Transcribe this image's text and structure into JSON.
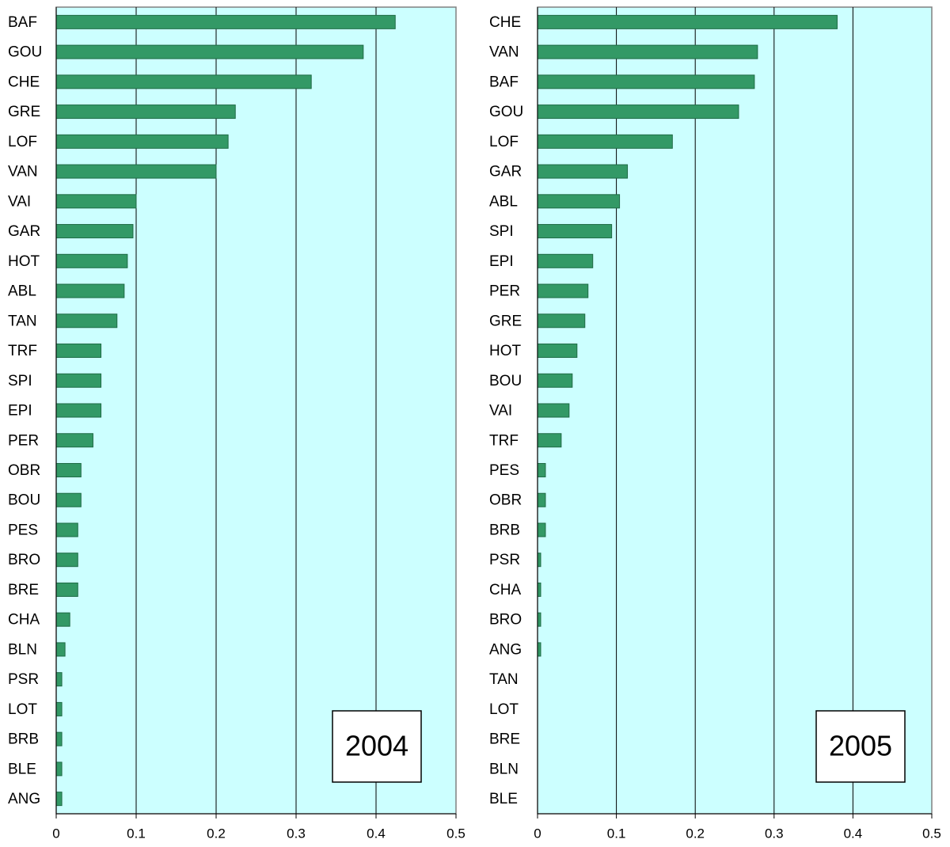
{
  "chart_data": [
    {
      "type": "bar",
      "orientation": "horizontal",
      "annotation": "2004",
      "categories": [
        "BAF",
        "GOU",
        "CHE",
        "GRE",
        "LOF",
        "VAN",
        "VAI",
        "GAR",
        "HOT",
        "ABL",
        "TAN",
        "TRF",
        "SPI",
        "EPI",
        "PER",
        "OBR",
        "BOU",
        "PES",
        "BRO",
        "BRE",
        "CHA",
        "BLN",
        "PSR",
        "LOT",
        "BRB",
        "BLE",
        "ANG"
      ],
      "values": [
        0.424,
        0.384,
        0.319,
        0.224,
        0.215,
        0.2,
        0.1,
        0.096,
        0.089,
        0.085,
        0.076,
        0.056,
        0.056,
        0.056,
        0.046,
        0.031,
        0.031,
        0.027,
        0.027,
        0.027,
        0.017,
        0.011,
        0.007,
        0.007,
        0.007,
        0.007,
        0.007
      ],
      "color": "#339966",
      "background": "#ccffff",
      "xlim": [
        0,
        0.5
      ],
      "xticks": [
        0,
        0.1,
        0.2,
        0.3,
        0.4,
        0.5
      ],
      "grid": true
    },
    {
      "type": "bar",
      "orientation": "horizontal",
      "annotation": "2005",
      "categories": [
        "CHE",
        "VAN",
        "BAF",
        "GOU",
        "LOF",
        "GAR",
        "ABL",
        "SPI",
        "EPI",
        "PER",
        "GRE",
        "HOT",
        "BOU",
        "VAI",
        "TRF",
        "PES",
        "OBR",
        "BRB",
        "PSR",
        "CHA",
        "BRO",
        "ANG",
        "TAN",
        "LOT",
        "BRE",
        "BLN",
        "BLE"
      ],
      "values": [
        0.38,
        0.279,
        0.275,
        0.255,
        0.171,
        0.114,
        0.104,
        0.094,
        0.07,
        0.064,
        0.06,
        0.05,
        0.044,
        0.04,
        0.03,
        0.01,
        0.01,
        0.01,
        0.004,
        0.004,
        0.004,
        0.004,
        0,
        0,
        0,
        0,
        0
      ],
      "color": "#339966",
      "background": "#ccffff",
      "xlim": [
        0,
        0.5
      ],
      "xticks": [
        0,
        0.1,
        0.2,
        0.3,
        0.4,
        0.5
      ],
      "grid": true
    }
  ]
}
